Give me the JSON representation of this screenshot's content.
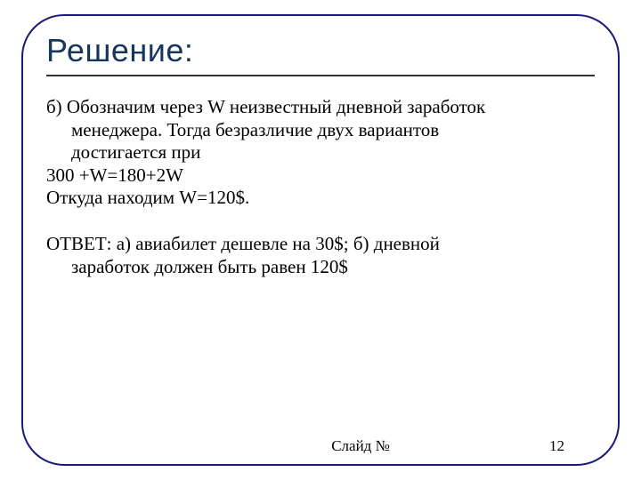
{
  "colors": {
    "frame_border": "#1a1a7a",
    "title_color": "#17365d",
    "underline_color": "#333333",
    "text_color": "#000000",
    "background": "#ffffff"
  },
  "typography": {
    "title_font": "Impact",
    "title_size_pt": 27,
    "body_font": "Times New Roman",
    "body_size_pt": 16,
    "footer_size_pt": 13
  },
  "title": "Решение:",
  "body": {
    "p1_line1": "б) Обозначим через W неизвестный дневной заработок",
    "p1_line2": "менеджера. Тогда безразличие двух вариантов",
    "p1_line3": "достигается при",
    "eq": "300 +W=180+2W",
    "res": "Откуда находим W=120$."
  },
  "answer": {
    "line1": "ОТВЕТ:  а) авиабилет дешевле на 30$; б) дневной",
    "line2": "заработок должен быть равен 120$"
  },
  "footer": {
    "label": "Слайд №",
    "number": "12"
  }
}
